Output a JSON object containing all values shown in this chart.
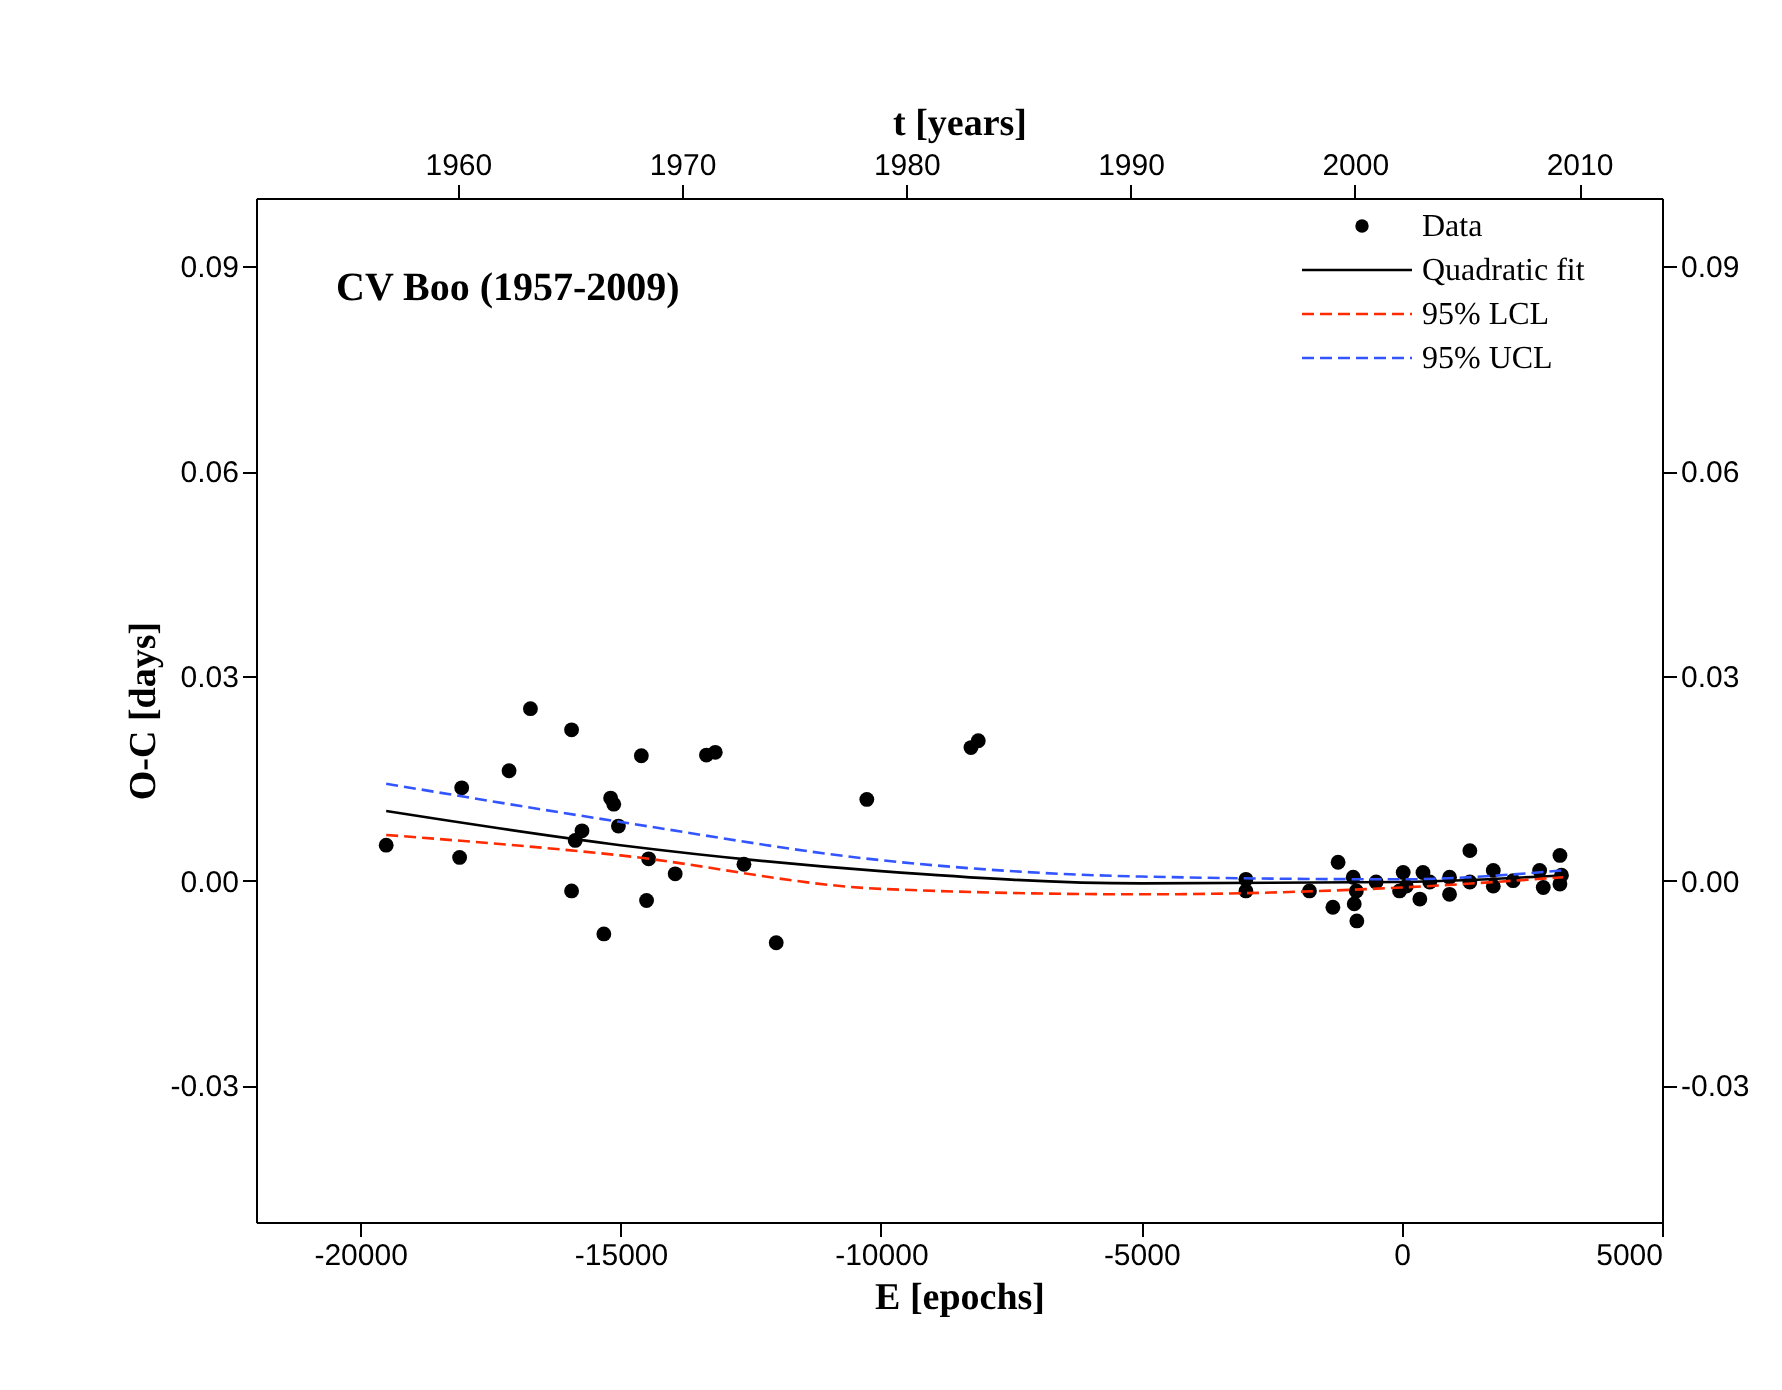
{
  "chart_data": {
    "type": "scatter",
    "xlabel": "E [epochs]",
    "x2label": "t [years]",
    "ylabel": "O-C [days]",
    "xlim": [
      -22000,
      5000
    ],
    "xticks": [
      -20000,
      -15000,
      -10000,
      -5000,
      0,
      5000
    ],
    "x2lim": [
      1951,
      2013.7
    ],
    "x2ticks": [
      1960,
      1970,
      1980,
      1990,
      2000,
      2010
    ],
    "ylim": [
      -0.05,
      0.1
    ],
    "yticks": [
      -0.03,
      {
        "value": 0,
        "label": "0.00"
      },
      0.03,
      0.06,
      0.09
    ],
    "y2lim": [
      -0.05,
      0.1
    ],
    "y2ticks": [
      -0.03,
      {
        "value": 0,
        "label": "0.00"
      },
      0.03,
      0.06,
      0.09
    ],
    "annotations": [
      "CV Boo (1957-2009)"
    ],
    "legend": "top right",
    "series": [
      {
        "name": "Data",
        "marker": "circle",
        "color": "#000000",
        "x": [
          -19500,
          -18090,
          -18050,
          -17140,
          -16730,
          -15940,
          -15940,
          -15870,
          -15740,
          -15320,
          -15190,
          -15130,
          -15040,
          -14600,
          -14500,
          -14460,
          -13950,
          -13350,
          -13180,
          -12630,
          -12010,
          -10270,
          -8270,
          -8130,
          -2990,
          -2990,
          -1770,
          -1220,
          -1320,
          -930,
          -870,
          -910,
          -860,
          -490,
          -40,
          30,
          90,
          410,
          350,
          540,
          920,
          920,
          1310,
          1310,
          1760,
          1760,
          2140,
          2650,
          2720,
          3040,
          3040,
          3070
        ],
        "values": [
          0.0052,
          0.0034,
          0.0136,
          0.0161,
          0.0252,
          0.0221,
          -0.0015,
          0.0059,
          0.0073,
          -0.0078,
          0.0121,
          0.0112,
          0.008,
          0.0183,
          -0.0029,
          0.0032,
          0.001,
          0.0184,
          0.0188,
          0.0024,
          -0.0091,
          0.0119,
          0.0195,
          0.0205,
          0.0002,
          -0.0015,
          -0.0015,
          0.0027,
          -0.0039,
          0.0005,
          -0.0015,
          -0.0034,
          -0.0059,
          -0.0002,
          -0.0015,
          0.0012,
          -0.0008,
          0.0012,
          -0.0027,
          -0.0002,
          0.0005,
          -0.002,
          0.0044,
          -0.0002,
          0.0015,
          -0.0008,
          0.0,
          0.0015,
          -0.001,
          0.0037,
          -0.0005,
          0.0008
        ]
      },
      {
        "name": "Quadratic fit",
        "type": "line",
        "line_style": "solid",
        "color": "#000000",
        "x": [
          -19500,
          -15000,
          -10000,
          -5000,
          0,
          3100
        ],
        "values": [
          0.0102,
          0.0052,
          0.0014,
          -0.0004,
          -0.0002,
          0.0008
        ]
      },
      {
        "name": "95% LCL",
        "type": "line",
        "line_style": "dashed",
        "color": "#ff2a00",
        "x": [
          -19500,
          -15000,
          -10000,
          -5000,
          0,
          3100
        ],
        "values": [
          0.0067,
          0.0037,
          -0.0012,
          -0.002,
          -0.001,
          0.0005
        ]
      },
      {
        "name": "95% UCL",
        "type": "line",
        "line_style": "dashed",
        "color": "#3355ff",
        "x": [
          -19500,
          -15000,
          -10000,
          -5000,
          0,
          3100
        ],
        "values": [
          0.0142,
          0.0086,
          0.003,
          0.0006,
          0.0002,
          0.0015
        ]
      }
    ]
  }
}
